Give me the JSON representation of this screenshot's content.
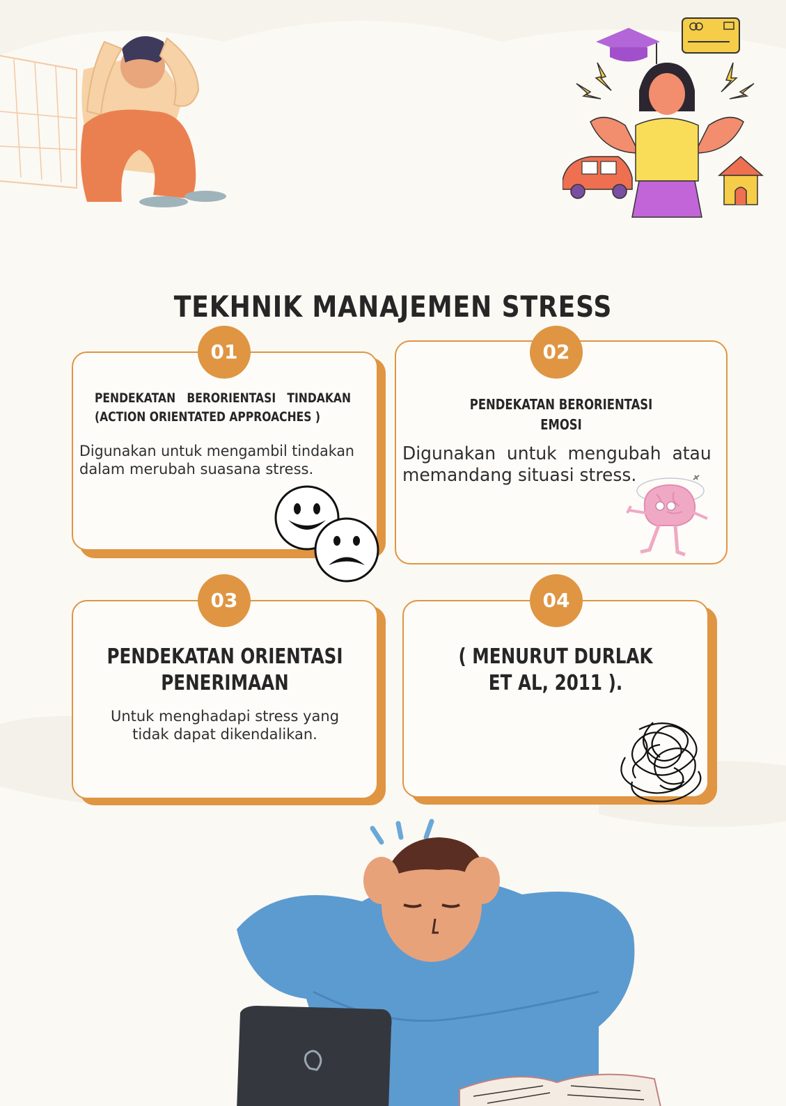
{
  "title": "TEKHNIK MANAJEMEN STRESS",
  "colors": {
    "accent": "#df9542",
    "background": "#fbf9f4",
    "text": "#262626"
  },
  "cards": [
    {
      "number": "01",
      "heading_line1": "PENDEKATAN   BERORIENTASI   TINDAKAN",
      "heading_line2": "(ACTION ORIENTATED APPROACHES )",
      "body_line1": "Digunakan untuk mengambil tindakan",
      "body_line2": "dalam merubah suasana stress.",
      "icon": "smiley-sad-faces-icon"
    },
    {
      "number": "02",
      "heading_line1": "PENDEKATAN BERORIENTASI",
      "heading_line2": "EMOSI",
      "body_line1": "Digunakan  untuk  mengubah  atau",
      "body_line2": "memandang situasi stress.",
      "icon": "dizzy-brain-icon"
    },
    {
      "number": "03",
      "heading_line1": "PENDEKATAN ORIENTASI",
      "heading_line2": "PENERIMAAN",
      "body_line1": "Untuk menghadapi stress yang",
      "body_line2": "tidak dapat dikendalikan.",
      "icon": ""
    },
    {
      "number": "04",
      "heading_line1": "( MENURUT DURLAK",
      "heading_line2": "ET AL, 2011 ).",
      "icon": "tangled-scribble-icon"
    }
  ],
  "illustrations": [
    "stressed-sitting-man-icon",
    "stressed-woman-icon",
    "stressed-student-laptop-icon"
  ]
}
